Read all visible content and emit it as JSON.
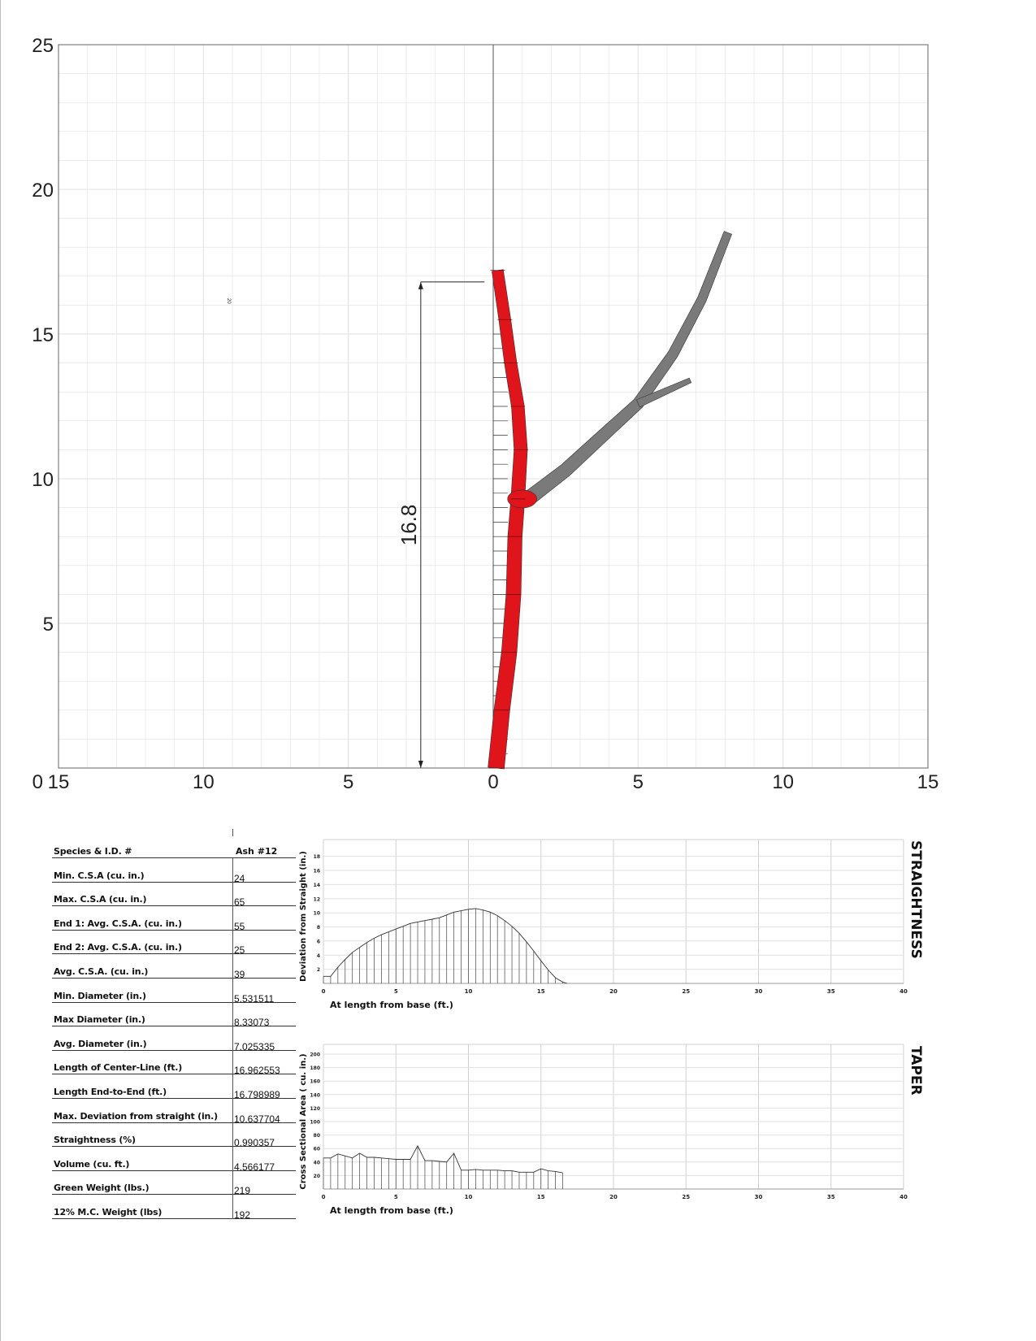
{
  "properties": {
    "header": {
      "label": "Species & I.D. #",
      "value": "Ash #12"
    },
    "rows": [
      {
        "label": "Min. C.S.A (cu. in.)",
        "value": "24"
      },
      {
        "label": "Max. C.S.A (cu. in.)",
        "value": "65"
      },
      {
        "label": "End 1:  Avg. C.S.A. (cu. in.)",
        "value": "55"
      },
      {
        "label": "End 2:  Avg. C.S.A. (cu. in.)",
        "value": "25"
      },
      {
        "label": "Avg. C.S.A. (cu. in.)",
        "value": "39"
      },
      {
        "label": "Min. Diameter (in.)",
        "value": "5.531511"
      },
      {
        "label": "Max Diameter (in.)",
        "value": "8.33073"
      },
      {
        "label": "Avg. Diameter (in.)",
        "value": "7.025335"
      },
      {
        "label": "Length of Center-Line (ft.)",
        "value": "16.962553"
      },
      {
        "label": "Length End-to-End (ft.)",
        "value": "16.798989"
      },
      {
        "label": "Max. Deviation from straight (in.)",
        "value": "10.637704"
      },
      {
        "label": "Straightness (%)",
        "value": "0.990357"
      },
      {
        "label": "Volume (cu. ft.)",
        "value": "4.566177"
      },
      {
        "label": "Green Weight (lbs.)",
        "value": "219"
      },
      {
        "label": "12% M.C. Weight (lbs)",
        "value": "192"
      }
    ]
  },
  "colors": {
    "main_stem": "#e0141b",
    "branch": "#7a7a7a",
    "grid": "#e2e2e2",
    "axis": "#666666"
  },
  "chart_data": [
    {
      "type": "line",
      "name": "tree-elevation",
      "x_ticks": [
        "15",
        "10",
        "5",
        "0",
        "5",
        "10",
        "15"
      ],
      "x_tick_values": [
        -15,
        -10,
        -5,
        0,
        5,
        10,
        15
      ],
      "y_ticks": [
        "0",
        "5",
        "10",
        "15",
        "20",
        "25"
      ],
      "y_tick_values": [
        0,
        5,
        10,
        15,
        20,
        25
      ],
      "xlim": [
        -15,
        15
      ],
      "ylim": [
        0,
        25
      ],
      "grid": true,
      "dimension_label": "16.8",
      "dimension_value": 16.8,
      "stray_label": "20",
      "main_stem_centerline": [
        [
          0.1,
          0
        ],
        [
          0.3,
          2
        ],
        [
          0.55,
          4
        ],
        [
          0.7,
          6
        ],
        [
          0.75,
          8
        ],
        [
          0.85,
          9.3
        ],
        [
          0.95,
          11
        ],
        [
          0.85,
          12.5
        ],
        [
          0.6,
          14
        ],
        [
          0.4,
          15.5
        ],
        [
          0.15,
          17.2
        ]
      ],
      "branch_centerline": [
        [
          1.2,
          9.3
        ],
        [
          2.5,
          10.3
        ],
        [
          3.8,
          11.5
        ],
        [
          5,
          12.6
        ],
        [
          6.2,
          14.3
        ],
        [
          7.2,
          16.2
        ],
        [
          8.1,
          18.5
        ]
      ],
      "sub_branch_centerline": [
        [
          5,
          12.6
        ],
        [
          5.9,
          13.0
        ],
        [
          6.8,
          13.4
        ]
      ]
    },
    {
      "type": "area",
      "name": "straightness",
      "side_label": "STRAIGHTNESS",
      "xlabel": "At length from base (ft.)",
      "ylabel": "Deviation from Straight (in.)",
      "xlim": [
        0,
        40
      ],
      "ylim": [
        0,
        19
      ],
      "x_ticks": [
        "0",
        "5",
        "10",
        "15",
        "20",
        "25",
        "30",
        "35",
        "40"
      ],
      "y_ticks": [
        "2",
        "4",
        "6",
        "8",
        "10",
        "12",
        "14",
        "16",
        "18"
      ],
      "grid": true,
      "x": [
        0,
        0.5,
        1.0,
        1.5,
        2.0,
        2.5,
        3.0,
        3.5,
        4.0,
        4.5,
        5.0,
        5.5,
        6.0,
        6.5,
        7.0,
        7.5,
        8.0,
        8.5,
        9.0,
        9.5,
        10.0,
        10.5,
        11.0,
        11.5,
        12.0,
        12.5,
        13.0,
        13.5,
        14.0,
        14.5,
        15.0,
        15.5,
        16.0,
        16.5,
        16.8
      ],
      "values": [
        1,
        1,
        2.3,
        3.4,
        4.4,
        5.1,
        5.8,
        6.4,
        6.9,
        7.3,
        7.7,
        8.1,
        8.5,
        8.7,
        8.9,
        9.1,
        9.3,
        9.7,
        10.1,
        10.3,
        10.5,
        10.6,
        10.4,
        10.1,
        9.6,
        8.9,
        8.1,
        7.1,
        5.9,
        4.6,
        3.2,
        1.9,
        0.8,
        0.2,
        0
      ]
    },
    {
      "type": "area",
      "name": "taper",
      "side_label": "TAPER",
      "xlabel": "At length from base (ft.)",
      "ylabel": "Cross Sectional Area ( cu. in.)",
      "xlim": [
        0,
        40
      ],
      "ylim": [
        0,
        200
      ],
      "x_ticks": [
        "0",
        "5",
        "10",
        "15",
        "20",
        "25",
        "30",
        "35",
        "40"
      ],
      "y_ticks": [
        "20",
        "40",
        "60",
        "80",
        "100",
        "120",
        "140",
        "160",
        "180",
        "200"
      ],
      "grid": true,
      "x": [
        0,
        0.5,
        1.0,
        1.5,
        2.0,
        2.5,
        3.0,
        3.5,
        4.0,
        4.5,
        5.0,
        5.5,
        6.0,
        6.5,
        7.0,
        7.5,
        8.0,
        8.5,
        9.0,
        9.5,
        10.0,
        10.5,
        11.0,
        11.5,
        12.0,
        12.5,
        13.0,
        13.5,
        14.0,
        14.5,
        15.0,
        15.5,
        16.0,
        16.5
      ],
      "values": [
        46,
        46,
        52,
        49,
        46,
        53,
        47,
        47,
        46,
        45,
        44,
        44,
        44,
        64,
        42,
        42,
        41,
        40,
        53,
        28,
        28,
        29,
        28,
        28,
        28,
        27,
        27,
        25,
        25,
        25,
        30,
        27,
        26,
        24
      ]
    }
  ]
}
